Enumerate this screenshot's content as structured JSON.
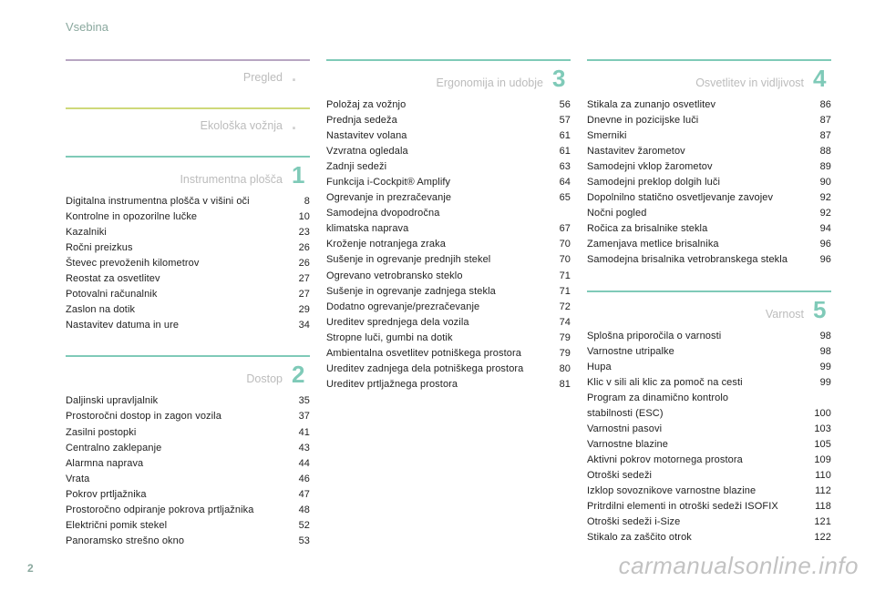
{
  "header": "Vsebina",
  "page_number": "2",
  "watermark": "carmanualsonline.info",
  "colors": {
    "header": "#8aa89e",
    "section_title": "#bcbcbc",
    "text": "#222222",
    "watermark": "rgba(120,120,120,0.45)"
  },
  "sections": [
    {
      "title": "Pregled",
      "rule_color": "#b8a6c2",
      "num": "",
      "num_color": "#cfcfcf",
      "is_dot": true,
      "items": []
    },
    {
      "title": "Ekološka vožnja",
      "rule_color": "#cfd97a",
      "num": "",
      "num_color": "#cfcfcf",
      "is_dot": true,
      "items": []
    },
    {
      "title": "Instrumentna plošča",
      "rule_color": "#7fcab8",
      "num": "1",
      "num_color": "#7fcab8",
      "items": [
        {
          "label": "Digitalna instrumentna plošča v višini oči",
          "pg": "8"
        },
        {
          "label": "Kontrolne in opozorilne lučke",
          "pg": "10"
        },
        {
          "label": "Kazalniki",
          "pg": "23"
        },
        {
          "label": "Ročni preizkus",
          "pg": "26"
        },
        {
          "label": "Števec prevoženih kilometrov",
          "pg": "26"
        },
        {
          "label": "Reostat za osvetlitev",
          "pg": "27"
        },
        {
          "label": "Potovalni računalnik",
          "pg": "27"
        },
        {
          "label": "Zaslon na dotik",
          "pg": "29"
        },
        {
          "label": "Nastavitev datuma in ure",
          "pg": "34"
        }
      ]
    },
    {
      "title": "Dostop",
      "rule_color": "#7fcab8",
      "num": "2",
      "num_color": "#7fcab8",
      "items": [
        {
          "label": "Daljinski upravljalnik",
          "pg": "35"
        },
        {
          "label": "Prostoročni dostop in zagon vozila",
          "pg": "37"
        },
        {
          "label": "Zasilni postopki",
          "pg": "41"
        },
        {
          "label": "Centralno zaklepanje",
          "pg": "43"
        },
        {
          "label": "Alarmna naprava",
          "pg": "44"
        },
        {
          "label": "Vrata",
          "pg": "46"
        },
        {
          "label": "Pokrov prtljažnika",
          "pg": "47"
        },
        {
          "label": "Prostoročno odpiranje pokrova prtljažnika",
          "pg": "48"
        },
        {
          "label": "Električni pomik stekel",
          "pg": "52"
        },
        {
          "label": "Panoramsko strešno okno",
          "pg": "53"
        }
      ]
    },
    {
      "title": "Ergonomija in udobje",
      "rule_color": "#7fcab8",
      "num": "3",
      "num_color": "#7fcab8",
      "items": [
        {
          "label": "Položaj za vožnjo",
          "pg": "56"
        },
        {
          "label": "Prednja sedeža",
          "pg": "57"
        },
        {
          "label": "Nastavitev volana",
          "pg": "61"
        },
        {
          "label": "Vzvratna ogledala",
          "pg": "61"
        },
        {
          "label": "Zadnji sedeži",
          "pg": "63"
        },
        {
          "label": "Funkcija i-Cockpit® Amplify",
          "pg": "64"
        },
        {
          "label": "Ogrevanje in prezračevanje",
          "pg": "65"
        },
        {
          "label": "Samodejna dvopodročna",
          "pg": ""
        },
        {
          "label": "klimatska naprava",
          "pg": "67"
        },
        {
          "label": "Kroženje notranjega zraka",
          "pg": "70"
        },
        {
          "label": "Sušenje in ogrevanje prednjih stekel",
          "pg": "70"
        },
        {
          "label": "Ogrevano vetrobransko steklo",
          "pg": "71"
        },
        {
          "label": "Sušenje in ogrevanje zadnjega stekla",
          "pg": "71"
        },
        {
          "label": "Dodatno ogrevanje/prezračevanje",
          "pg": "72"
        },
        {
          "label": "Ureditev sprednjega dela vozila",
          "pg": "74"
        },
        {
          "label": "Stropne luči, gumbi na dotik",
          "pg": "79"
        },
        {
          "label": "Ambientalna osvetlitev potniškega prostora",
          "pg": "79"
        },
        {
          "label": "Ureditev zadnjega dela potniškega prostora",
          "pg": "80"
        },
        {
          "label": "Ureditev prtljažnega prostora",
          "pg": "81"
        }
      ]
    },
    {
      "title": "Osvetlitev in vidljivost",
      "rule_color": "#7fcab8",
      "num": "4",
      "num_color": "#7fcab8",
      "items": [
        {
          "label": "Stikala za zunanjo osvetlitev",
          "pg": "86"
        },
        {
          "label": "Dnevne in pozicijske luči",
          "pg": "87"
        },
        {
          "label": "Smerniki",
          "pg": "87"
        },
        {
          "label": "Nastavitev žarometov",
          "pg": "88"
        },
        {
          "label": "Samodejni vklop žarometov",
          "pg": "89"
        },
        {
          "label": "Samodejni preklop dolgih luči",
          "pg": "90"
        },
        {
          "label": "Dopolnilno statično osvetljevanje zavojev",
          "pg": "92"
        },
        {
          "label": "Nočni pogled",
          "pg": "92"
        },
        {
          "label": "Ročica za brisalnike stekla",
          "pg": "94"
        },
        {
          "label": "Zamenjava metlice brisalnika",
          "pg": "96"
        },
        {
          "label": "Samodejna brisalnika vetrobranskega stekla",
          "pg": "96"
        }
      ]
    },
    {
      "title": "Varnost",
      "rule_color": "#7fcab8",
      "num": "5",
      "num_color": "#7fcab8",
      "items": [
        {
          "label": "Splošna priporočila o varnosti",
          "pg": "98"
        },
        {
          "label": "Varnostne utripalke",
          "pg": "98"
        },
        {
          "label": "Hupa",
          "pg": "99"
        },
        {
          "label": "Klic v sili ali klic za pomoč na cesti",
          "pg": "99"
        },
        {
          "label": "Program za dinamično kontrolo",
          "pg": ""
        },
        {
          "label": "stabilnosti (ESC)",
          "pg": "100"
        },
        {
          "label": "Varnostni pasovi",
          "pg": "103"
        },
        {
          "label": "Varnostne blazine",
          "pg": "105"
        },
        {
          "label": "Aktivni pokrov motornega prostora",
          "pg": "109"
        },
        {
          "label": "Otroški sedeži",
          "pg": "110"
        },
        {
          "label": "Izklop sovoznikove varnostne blazine",
          "pg": "112"
        },
        {
          "label": "Pritrdilni elementi in otroški sedeži ISOFIX",
          "pg": "118"
        },
        {
          "label": "Otroški sedeži i-Size",
          "pg": "121"
        },
        {
          "label": "Stikalo za zaščito otrok",
          "pg": "122"
        }
      ]
    }
  ],
  "layout": {
    "col1_sections": [
      0,
      1,
      2,
      3
    ],
    "col2_sections": [
      4
    ],
    "col3_sections": [
      5,
      6
    ]
  }
}
